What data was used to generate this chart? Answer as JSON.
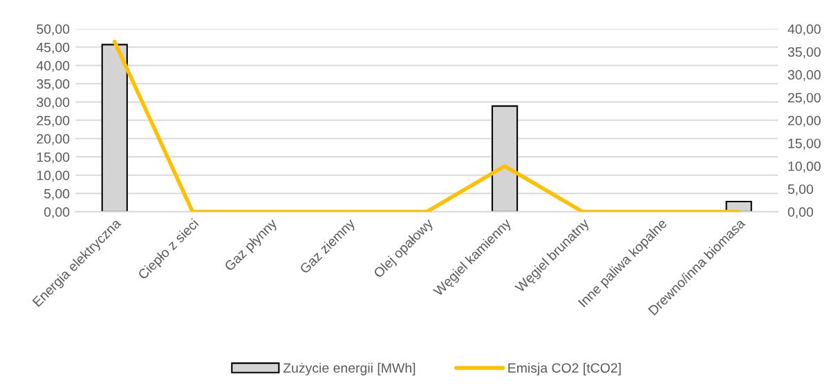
{
  "chart_data": {
    "type": "bar",
    "categories": [
      "Energia elektryczna",
      "Ciepło z sieci",
      "Gaz płynny",
      "Gaz ziemny",
      "Olej opałowy",
      "Węgiel kamienny",
      "Węgiel brunatny",
      "Inne paliwa kopalne",
      "Drewno/inna biomasa"
    ],
    "series": [
      {
        "name": "Zużycie energii [MWh]",
        "color": "#d4d4d4",
        "values": [
          45.7,
          0,
          0,
          0,
          0,
          28.9,
          0,
          0,
          2.8
        ]
      },
      {
        "name": "Emisja CO2 [tCO2]",
        "type": "line",
        "axis": "y2",
        "color": "#ffc000",
        "values": [
          37.2,
          0,
          0,
          0,
          0,
          10.0,
          0,
          0,
          0
        ]
      }
    ],
    "ylim": [
      0,
      50
    ],
    "yticks": [
      {
        "value": 0,
        "label": "0,00"
      },
      {
        "value": 5,
        "label": "5,00"
      },
      {
        "value": 10,
        "label": "10,00"
      },
      {
        "value": 15,
        "label": "15,00"
      },
      {
        "value": 20,
        "label": "20,00"
      },
      {
        "value": 25,
        "label": "25,00"
      },
      {
        "value": 30,
        "label": "30,00"
      },
      {
        "value": 35,
        "label": "35,00"
      },
      {
        "value": 40,
        "label": "40,00"
      },
      {
        "value": 45,
        "label": "45,00"
      },
      {
        "value": 50,
        "label": "50,00"
      }
    ],
    "y2lim": [
      0,
      40
    ],
    "y2ticks": [
      {
        "value": 0,
        "label": "0,00"
      },
      {
        "value": 5,
        "label": "5,00"
      },
      {
        "value": 10,
        "label": "10,00"
      },
      {
        "value": 15,
        "label": "15,00"
      },
      {
        "value": 20,
        "label": "20,00"
      },
      {
        "value": 25,
        "label": "25,00"
      },
      {
        "value": 30,
        "label": "30,00"
      },
      {
        "value": 35,
        "label": "35,00"
      },
      {
        "value": 40,
        "label": "40,00"
      }
    ],
    "grid": "y",
    "legend": "bottom",
    "marker": "none",
    "line_style": "solid"
  }
}
